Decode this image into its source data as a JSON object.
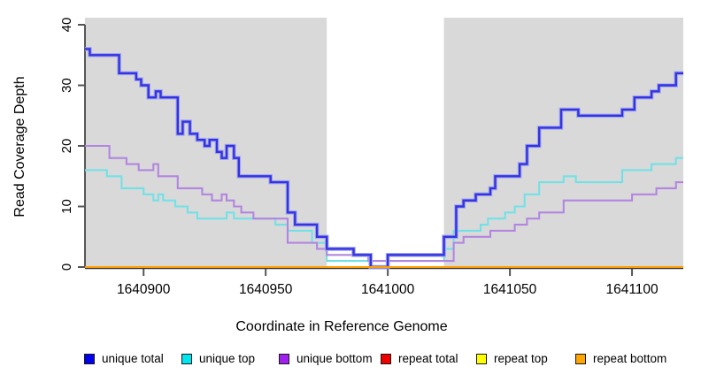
{
  "chart_data": {
    "type": "line",
    "subtype": "step",
    "title": "",
    "xlabel": "Coordinate in Reference Genome",
    "ylabel": "Read Coverage Depth",
    "xlim": [
      1640876,
      1641121
    ],
    "ylim": [
      0,
      40
    ],
    "x_ticks": [
      1640900,
      1640950,
      1641000,
      1641050,
      1641100
    ],
    "x_tick_labels": [
      "1640900",
      "1640950",
      "1641000",
      "1641050",
      "1641100"
    ],
    "y_ticks": [
      0,
      10,
      20,
      30,
      40
    ],
    "y_tick_labels": [
      "0",
      "10",
      "20",
      "30",
      "40"
    ],
    "grid": false,
    "plot_background": "#d9d9d9",
    "figure_background": "#ffffff",
    "highlight_region": {
      "start": 1640975,
      "end": 1641023,
      "color": "#ffffff"
    },
    "legend_position": "bottom",
    "series": [
      {
        "name": "repeat total",
        "color": "#e60000",
        "points": [
          [
            1640876,
            0
          ],
          [
            1641121,
            0
          ]
        ]
      },
      {
        "name": "repeat top",
        "color": "#ffff00",
        "points": [
          [
            1640876,
            0
          ],
          [
            1641121,
            0
          ]
        ]
      },
      {
        "name": "unique top",
        "color": "#72e1e6",
        "points": [
          [
            1640876,
            16
          ],
          [
            1640885,
            15
          ],
          [
            1640891,
            13
          ],
          [
            1640900,
            12
          ],
          [
            1640904,
            11
          ],
          [
            1640906,
            12
          ],
          [
            1640908,
            11
          ],
          [
            1640913,
            10
          ],
          [
            1640918,
            9
          ],
          [
            1640922,
            8
          ],
          [
            1640934,
            9
          ],
          [
            1640937,
            8
          ],
          [
            1640954,
            7
          ],
          [
            1640959,
            6
          ],
          [
            1640969,
            4
          ],
          [
            1640975,
            1
          ],
          [
            1641023,
            3
          ],
          [
            1641027,
            6
          ],
          [
            1641038,
            7
          ],
          [
            1641041,
            8
          ],
          [
            1641048,
            9
          ],
          [
            1641052,
            10
          ],
          [
            1641056,
            12
          ],
          [
            1641062,
            14
          ],
          [
            1641072,
            15
          ],
          [
            1641077,
            14
          ],
          [
            1641096,
            16
          ],
          [
            1641108,
            17
          ],
          [
            1641118,
            18
          ],
          [
            1641121,
            18
          ]
        ]
      },
      {
        "name": "unique bottom",
        "color": "#b286e0",
        "points": [
          [
            1640876,
            20
          ],
          [
            1640886,
            18
          ],
          [
            1640893,
            17
          ],
          [
            1640898,
            16
          ],
          [
            1640904,
            17
          ],
          [
            1640906,
            15
          ],
          [
            1640914,
            13
          ],
          [
            1640924,
            12
          ],
          [
            1640928,
            11
          ],
          [
            1640932,
            12
          ],
          [
            1640934,
            11
          ],
          [
            1640937,
            10
          ],
          [
            1640940,
            9
          ],
          [
            1640945,
            8
          ],
          [
            1640959,
            4
          ],
          [
            1640971,
            3
          ],
          [
            1640975,
            2
          ],
          [
            1640992,
            1
          ],
          [
            1641027,
            4
          ],
          [
            1641031,
            5
          ],
          [
            1641042,
            6
          ],
          [
            1641052,
            7
          ],
          [
            1641057,
            8
          ],
          [
            1641062,
            9
          ],
          [
            1641072,
            11
          ],
          [
            1641100,
            12
          ],
          [
            1641110,
            13
          ],
          [
            1641118,
            14
          ],
          [
            1641121,
            14
          ]
        ]
      },
      {
        "name": "unique total",
        "color": "#3333e0",
        "halo": "#a3a6ef",
        "points": [
          [
            1640876,
            36
          ],
          [
            1640878,
            35
          ],
          [
            1640890,
            32
          ],
          [
            1640897,
            31
          ],
          [
            1640899,
            30
          ],
          [
            1640902,
            28
          ],
          [
            1640905,
            29
          ],
          [
            1640907,
            28
          ],
          [
            1640914,
            22
          ],
          [
            1640916,
            24
          ],
          [
            1640919,
            22
          ],
          [
            1640922,
            21
          ],
          [
            1640925,
            20
          ],
          [
            1640927,
            21
          ],
          [
            1640930,
            19
          ],
          [
            1640932,
            18
          ],
          [
            1640934,
            20
          ],
          [
            1640937,
            18
          ],
          [
            1640939,
            15
          ],
          [
            1640952,
            14
          ],
          [
            1640959,
            9
          ],
          [
            1640962,
            7
          ],
          [
            1640971,
            5
          ],
          [
            1640975,
            3
          ],
          [
            1640986,
            2
          ],
          [
            1640993,
            0
          ],
          [
            1641000,
            2
          ],
          [
            1641023,
            5
          ],
          [
            1641028,
            10
          ],
          [
            1641031,
            11
          ],
          [
            1641036,
            12
          ],
          [
            1641042,
            13
          ],
          [
            1641044,
            15
          ],
          [
            1641054,
            17
          ],
          [
            1641057,
            20
          ],
          [
            1641062,
            23
          ],
          [
            1641071,
            26
          ],
          [
            1641078,
            25
          ],
          [
            1641096,
            26
          ],
          [
            1641101,
            28
          ],
          [
            1641108,
            29
          ],
          [
            1641111,
            30
          ],
          [
            1641118,
            32
          ],
          [
            1641121,
            32
          ]
        ]
      },
      {
        "name": "repeat bottom",
        "color": "#ff9d00",
        "points": [
          [
            1640876,
            0
          ],
          [
            1641121,
            0
          ]
        ]
      }
    ]
  },
  "legend": {
    "items": [
      {
        "label": "unique total",
        "color": "#0000ee",
        "x": 95
      },
      {
        "label": "unique top",
        "color": "#00e5ee",
        "x": 205
      },
      {
        "label": "unique bottom",
        "color": "#a020f0",
        "x": 315
      },
      {
        "label": "repeat total",
        "color": "#ee0000",
        "x": 430
      },
      {
        "label": "repeat top",
        "color": "#ffff00",
        "x": 538
      },
      {
        "label": "repeat bottom",
        "color": "#ffa500",
        "x": 650
      }
    ],
    "y": 398
  },
  "axes": {
    "tick_color": "#555555",
    "axis_color": "#333333",
    "tick_label_color": "#000000"
  }
}
